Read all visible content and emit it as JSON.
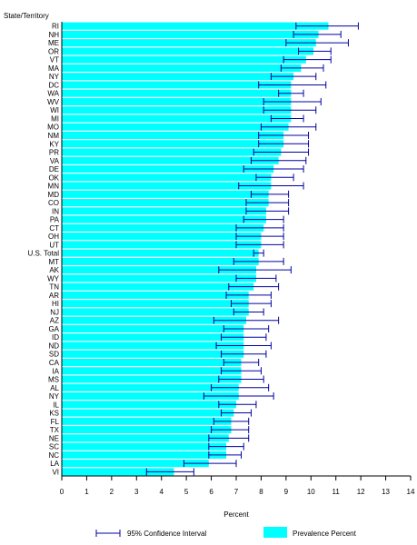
{
  "chart_data": {
    "type": "bar",
    "orientation": "horizontal",
    "title": "",
    "ylabel": "State/Territory",
    "xlabel": "Percent",
    "xlim": [
      0,
      14
    ],
    "x_ticks": [
      "0",
      "1",
      "2",
      "3",
      "4",
      "5",
      "6",
      "7",
      "8",
      "9",
      "10",
      "11",
      "12",
      "13",
      "14"
    ],
    "grid": false,
    "legend_placement": "bottom",
    "legend": {
      "ci_label": "95% Confidence Interval",
      "prevalence_label": "Prevalence Percent"
    },
    "colors": {
      "bar": "#00ffff",
      "ci": "#0000a0",
      "axis": "#000000"
    },
    "categories": [
      "RI",
      "NH",
      "ME",
      "OR",
      "VT",
      "MA",
      "NY",
      "DC",
      "WA",
      "WV",
      "WI",
      "MI",
      "MO",
      "NM",
      "KY",
      "PR",
      "VA",
      "DE",
      "OK",
      "MN",
      "MD",
      "CO",
      "IN",
      "PA",
      "CT",
      "OH",
      "UT",
      "U.S. Total",
      "MT",
      "AK",
      "WY",
      "TN",
      "AR",
      "HI",
      "NJ",
      "AZ",
      "GA",
      "ID",
      "ND",
      "SD",
      "CA",
      "IA",
      "MS",
      "AL",
      "NY",
      "IL",
      "KS",
      "FL",
      "TX",
      "NE",
      "SC",
      "NC",
      "LA",
      "VI"
    ],
    "series": [
      {
        "name": "Prevalence Percent",
        "values": [
          10.7,
          10.3,
          10.2,
          10.1,
          9.8,
          9.6,
          9.3,
          9.2,
          9.2,
          9.2,
          9.2,
          9.2,
          9.1,
          8.9,
          8.9,
          8.8,
          8.7,
          8.5,
          8.4,
          8.4,
          8.3,
          8.3,
          8.2,
          8.2,
          8.1,
          8.0,
          8.0,
          7.9,
          7.9,
          7.8,
          7.8,
          7.7,
          7.5,
          7.5,
          7.5,
          7.4,
          7.3,
          7.3,
          7.3,
          7.3,
          7.2,
          7.2,
          7.2,
          7.1,
          7.1,
          7.0,
          6.9,
          6.8,
          6.8,
          6.7,
          6.6,
          6.6,
          5.9,
          4.5
        ]
      },
      {
        "name": "95% Confidence Interval",
        "lower": [
          9.4,
          9.3,
          9.0,
          9.5,
          8.9,
          8.8,
          8.4,
          7.9,
          8.7,
          8.1,
          8.1,
          8.4,
          8.0,
          7.9,
          7.9,
          7.7,
          7.6,
          7.3,
          7.8,
          7.1,
          7.6,
          7.4,
          7.4,
          7.3,
          7.0,
          7.0,
          7.0,
          7.7,
          6.9,
          6.3,
          7.0,
          6.7,
          6.6,
          6.8,
          6.9,
          6.1,
          6.5,
          6.4,
          6.2,
          6.4,
          6.5,
          6.4,
          6.3,
          6.0,
          5.7,
          6.3,
          6.4,
          6.1,
          6.0,
          5.9,
          5.9,
          5.9,
          4.9,
          3.4
        ],
        "upper": [
          11.9,
          11.2,
          11.5,
          10.8,
          10.8,
          10.5,
          10.2,
          10.6,
          9.7,
          10.4,
          10.2,
          9.7,
          10.2,
          9.9,
          9.9,
          9.9,
          9.8,
          9.7,
          9.3,
          9.7,
          9.1,
          9.1,
          9.1,
          8.9,
          8.9,
          8.9,
          8.9,
          8.1,
          8.9,
          9.2,
          8.6,
          8.7,
          8.4,
          8.4,
          8.1,
          8.7,
          8.3,
          8.2,
          8.4,
          8.2,
          7.9,
          8.0,
          8.1,
          8.3,
          8.5,
          7.8,
          7.6,
          7.5,
          7.5,
          7.5,
          7.3,
          7.2,
          7.0,
          5.3
        ]
      }
    ]
  }
}
